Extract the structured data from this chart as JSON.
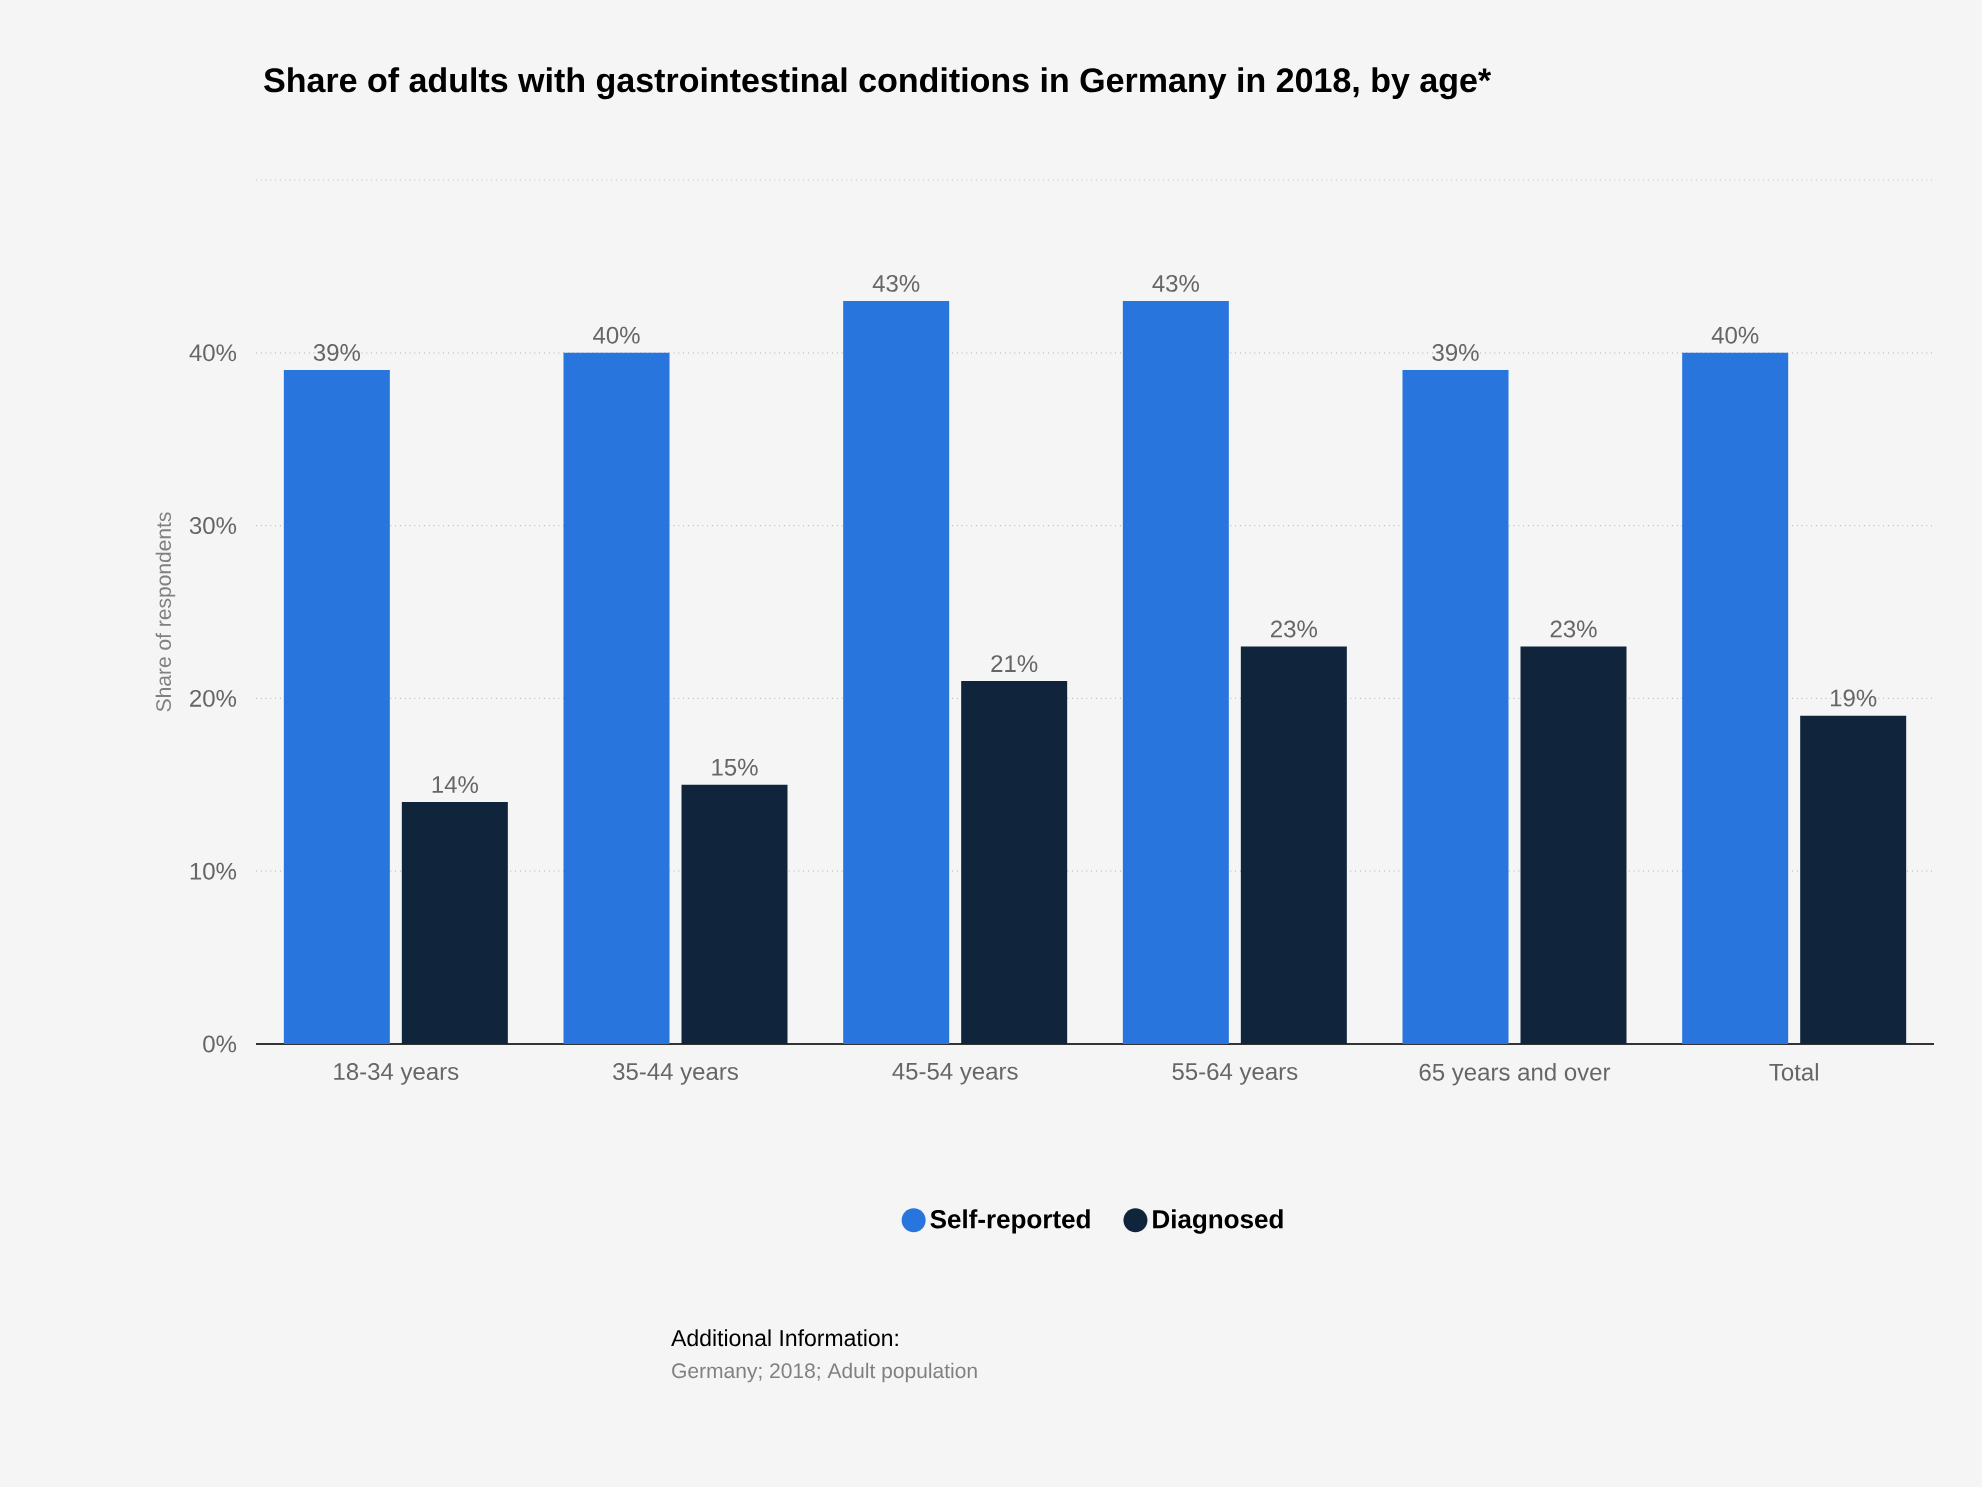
{
  "chart_data": {
    "type": "bar",
    "title": "Share of adults with gastrointestinal conditions in Germany in 2018, by age*",
    "ylabel": "Share of respondents",
    "categories": [
      "18-34 years",
      "35-44 years",
      "45-54 years",
      "55-64 years",
      "65 years and over",
      "Total"
    ],
    "series": [
      {
        "name": "Self-reported",
        "color": "#2876dd",
        "values": [
          39,
          40,
          43,
          43,
          39,
          40
        ],
        "value_labels": [
          "39%",
          "40%",
          "43%",
          "43%",
          "39%",
          "40%"
        ]
      },
      {
        "name": "Diagnosed",
        "color": "#10253c",
        "values": [
          14,
          15,
          21,
          23,
          23,
          19
        ],
        "value_labels": [
          "14%",
          "15%",
          "21%",
          "23%",
          "23%",
          "19%"
        ]
      }
    ],
    "ylim": [
      0,
      50
    ],
    "yticks": [
      {
        "value": 0,
        "label": "0%"
      },
      {
        "value": 10,
        "label": "10%"
      },
      {
        "value": 20,
        "label": "20%"
      },
      {
        "value": 30,
        "label": "30%"
      },
      {
        "value": 40,
        "label": "40%"
      },
      {
        "value": 50,
        "label": null
      }
    ],
    "grid": "y",
    "legend": "bottom",
    "annotations": [
      "Additional Information:",
      "Germany; 2018; Adult population"
    ]
  }
}
